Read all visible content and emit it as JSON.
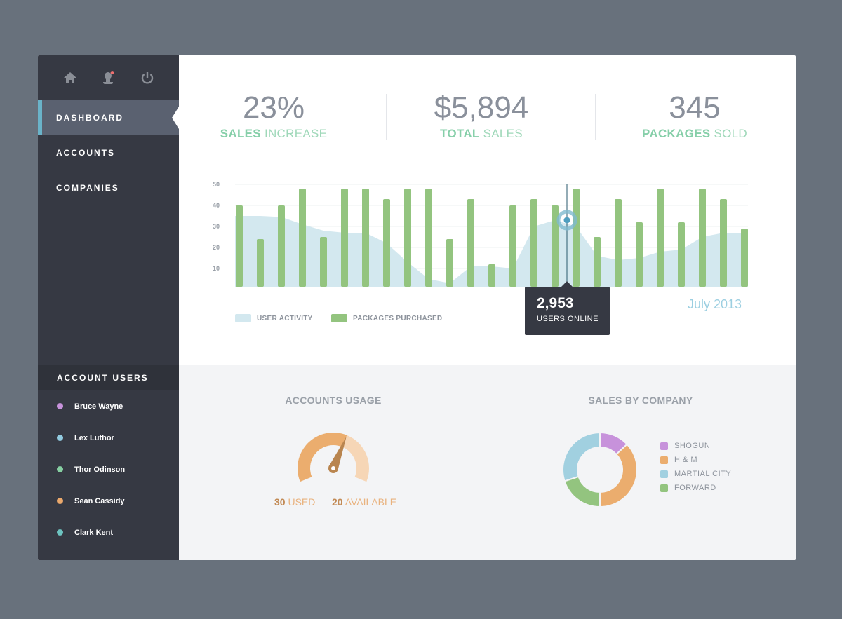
{
  "sidebar": {
    "icons": [
      "home-icon",
      "user-notification-icon",
      "power-icon"
    ],
    "nav": [
      {
        "label": "DASHBOARD",
        "active": true
      },
      {
        "label": "ACCOUNTS"
      },
      {
        "label": "COMPANIES"
      }
    ],
    "users_title": "ACCOUNT USERS",
    "users": [
      {
        "name": "Bruce Wayne",
        "color": "#c792db"
      },
      {
        "name": "Lex Luthor",
        "color": "#92cbe0"
      },
      {
        "name": "Thor Odinson",
        "color": "#86cfa2"
      },
      {
        "name": "Sean Cassidy",
        "color": "#eaa86c"
      },
      {
        "name": "Clark Kent",
        "color": "#6dc3c0"
      }
    ]
  },
  "stats": [
    {
      "value": "23%",
      "bold": "SALES",
      "rest": " INCREASE"
    },
    {
      "value": "$5,894",
      "bold": "TOTAL",
      "rest": " SALES"
    },
    {
      "value": "345",
      "bold": "PACKAGES",
      "rest": " SOLD"
    }
  ],
  "chart_data": {
    "type": "bar+area",
    "ylim": [
      0,
      50
    ],
    "yticks": [
      10,
      20,
      30,
      40,
      50
    ],
    "grid": true,
    "legend_placement": "bottom-left",
    "series": [
      {
        "name": "USER ACTIVITY",
        "type": "area",
        "color": "#d3e8ef",
        "values": [
          35,
          35,
          34.5,
          31,
          28,
          27,
          27,
          22,
          13,
          5,
          3,
          11,
          11,
          10,
          30,
          33,
          30,
          16,
          14,
          15,
          18,
          19,
          25,
          27,
          27
        ]
      },
      {
        "name": "PACKAGES PURCHASED",
        "type": "bar",
        "color": "#93c47f",
        "values": [
          40,
          24,
          40,
          48,
          25,
          48,
          48,
          43,
          48,
          48,
          24,
          43,
          12,
          40,
          43,
          40,
          48,
          25,
          43,
          32,
          48,
          32,
          48,
          43,
          29
        ]
      }
    ],
    "period": "July 2013",
    "tooltip": {
      "value": "2,953",
      "label": "USERS ONLINE"
    }
  },
  "accounts_usage": {
    "title": "ACCOUNTS USAGE",
    "used": 30,
    "available": 20,
    "used_label": "USED",
    "available_label": "AVAILABLE",
    "colors": {
      "used": "#ebad6e",
      "available": "#f6d6b6",
      "needle": "#b9854f"
    }
  },
  "sales_by_company": {
    "title": "SALES BY COMPANY",
    "slices": [
      {
        "label": "SHOGUN",
        "value": 13,
        "color": "#c792db"
      },
      {
        "label": "H & M",
        "value": 37,
        "color": "#ebad6e"
      },
      {
        "label": "FORWARD",
        "value": 20,
        "color": "#93c47f"
      },
      {
        "label": "MARTIAL CITY",
        "value": 30,
        "color": "#a1d0e0"
      }
    ],
    "legend_order": [
      "SHOGUN",
      "H & M",
      "MARTIAL CITY",
      "FORWARD"
    ]
  }
}
